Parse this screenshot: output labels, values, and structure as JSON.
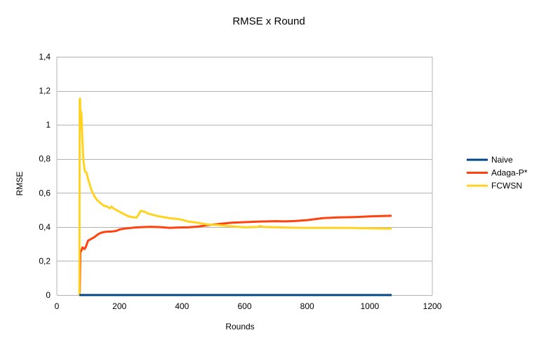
{
  "chart_data": {
    "type": "line",
    "title": "RMSE x Round",
    "xlabel": "Rounds",
    "ylabel": "RMSE",
    "xlim": [
      0,
      1200
    ],
    "ylim": [
      0,
      1.4
    ],
    "x_ticks": [
      0,
      200,
      400,
      600,
      800,
      1000,
      1200
    ],
    "x_tick_labels": [
      "0",
      "200",
      "400",
      "600",
      "800",
      "1000",
      "1200"
    ],
    "y_ticks": [
      0,
      0.2,
      0.4,
      0.6,
      0.8,
      1,
      1.2,
      1.4
    ],
    "y_tick_labels": [
      "0",
      "0,2",
      "0,4",
      "0,6",
      "0,8",
      "1",
      "1,2",
      "1,4"
    ],
    "grid": "horizontal",
    "legend_position": "right",
    "series": [
      {
        "name": "Naive",
        "color": "#004586",
        "x": [
          72,
          1070
        ],
        "y": [
          0,
          0
        ]
      },
      {
        "name": "Adaga-P*",
        "color": "#ff420e",
        "x": [
          72,
          73,
          75,
          78,
          82,
          88,
          92,
          96,
          100,
          110,
          120,
          130,
          140,
          150,
          160,
          175,
          190,
          200,
          215,
          230,
          250,
          270,
          300,
          330,
          360,
          390,
          420,
          450,
          480,
          520,
          560,
          600,
          650,
          700,
          730,
          760,
          800,
          850,
          900,
          950,
          1000,
          1050,
          1070
        ],
        "y": [
          0,
          0.02,
          0.25,
          0.26,
          0.28,
          0.27,
          0.28,
          0.3,
          0.32,
          0.33,
          0.34,
          0.355,
          0.365,
          0.37,
          0.372,
          0.373,
          0.377,
          0.385,
          0.39,
          0.393,
          0.397,
          0.399,
          0.401,
          0.399,
          0.395,
          0.397,
          0.398,
          0.402,
          0.41,
          0.418,
          0.425,
          0.428,
          0.432,
          0.434,
          0.433,
          0.435,
          0.44,
          0.452,
          0.456,
          0.458,
          0.462,
          0.465,
          0.466
        ]
      },
      {
        "name": "FCWSN",
        "color": "#ffd320",
        "x": [
          72,
          73,
          74,
          75,
          76,
          78,
          80,
          82,
          84,
          86,
          90,
          95,
          100,
          105,
          110,
          120,
          130,
          140,
          150,
          160,
          170,
          175,
          180,
          190,
          200,
          210,
          220,
          230,
          240,
          255,
          262,
          268,
          280,
          290,
          300,
          320,
          340,
          360,
          380,
          400,
          420,
          450,
          480,
          520,
          550,
          600,
          640,
          650,
          660,
          700,
          750,
          800,
          850,
          900,
          950,
          1000,
          1050,
          1070
        ],
        "y": [
          0,
          1.14,
          1.155,
          1.1,
          0.98,
          1.075,
          1.0,
          0.89,
          0.82,
          0.77,
          0.725,
          0.72,
          0.68,
          0.65,
          0.62,
          0.58,
          0.555,
          0.54,
          0.525,
          0.52,
          0.51,
          0.52,
          0.51,
          0.5,
          0.49,
          0.48,
          0.47,
          0.462,
          0.458,
          0.455,
          0.475,
          0.495,
          0.49,
          0.48,
          0.475,
          0.465,
          0.458,
          0.452,
          0.448,
          0.442,
          0.432,
          0.425,
          0.415,
          0.41,
          0.405,
          0.398,
          0.4,
          0.405,
          0.4,
          0.398,
          0.396,
          0.395,
          0.395,
          0.395,
          0.394,
          0.392,
          0.39,
          0.39
        ]
      }
    ]
  }
}
